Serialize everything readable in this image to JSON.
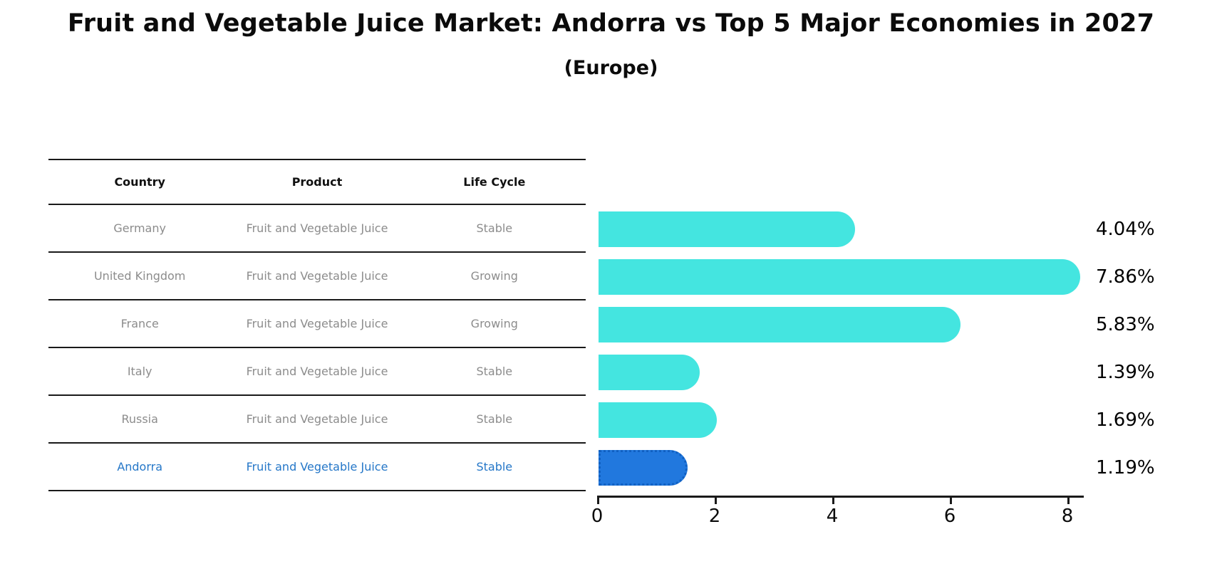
{
  "title": "Fruit and Vegetable Juice Market: Andorra vs Top 5 Major Economies in 2027",
  "subtitle": "(Europe)",
  "table": {
    "headers": {
      "country": "Country",
      "product": "Product",
      "life_cycle": "Life Cycle"
    },
    "rows": [
      {
        "country": "Germany",
        "product": "Fruit and Vegetable Juice",
        "life_cycle": "Stable",
        "highlight": false
      },
      {
        "country": "United Kingdom",
        "product": "Fruit and Vegetable Juice",
        "life_cycle": "Growing",
        "highlight": false
      },
      {
        "country": "France",
        "product": "Fruit and Vegetable Juice",
        "life_cycle": "Growing",
        "highlight": false
      },
      {
        "country": "Italy",
        "product": "Fruit and Vegetable Juice",
        "life_cycle": "Stable",
        "highlight": false
      },
      {
        "country": "Russia",
        "product": "Fruit and Vegetable Juice",
        "life_cycle": "Stable",
        "highlight": false
      },
      {
        "country": "Andorra",
        "product": "Fruit and Vegetable Juice",
        "life_cycle": "Stable",
        "highlight": true
      }
    ]
  },
  "chart_data": {
    "type": "bar",
    "orientation": "horizontal",
    "title": "Fruit and Vegetable Juice Market: Andorra vs Top 5 Major Economies in 2027",
    "subtitle": "(Europe)",
    "categories": [
      "Germany",
      "United Kingdom",
      "France",
      "Italy",
      "Russia",
      "Andorra"
    ],
    "values": [
      4.04,
      7.86,
      5.83,
      1.39,
      1.69,
      1.19
    ],
    "value_labels": [
      "4.04%",
      "7.86%",
      "5.83%",
      "1.39%",
      "1.69%",
      "1.19%"
    ],
    "life_cycle": [
      "Stable",
      "Growing",
      "Growing",
      "Stable",
      "Stable",
      "Stable"
    ],
    "x_ticks": [
      0,
      2,
      4,
      6,
      8
    ],
    "xlim": [
      0,
      8.27
    ],
    "grid": false,
    "legend": false,
    "highlight_index": 5,
    "bar_color": "#44e5e0",
    "highlight_color": "#2178de",
    "highlight_border_color": "#1060c2",
    "highlight_text_color": "#2577c8"
  }
}
